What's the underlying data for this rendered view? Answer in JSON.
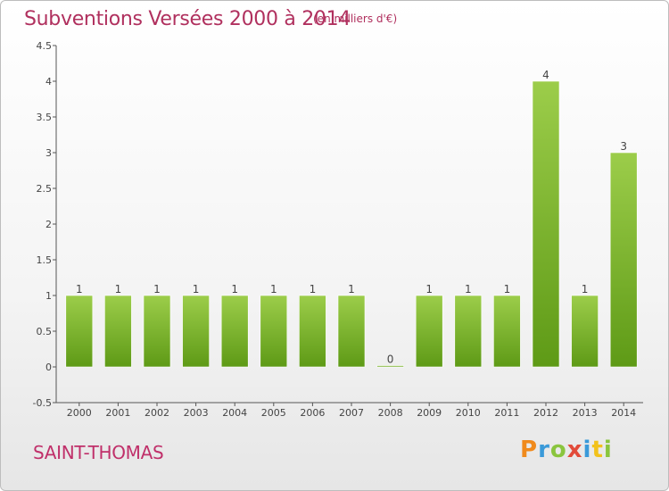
{
  "header": {
    "title": "Subventions Versées 2000 à 2014",
    "subtitle": "(en milliers d'€)"
  },
  "footer": {
    "commune": "SAINT-THOMAS",
    "logo_text": "Proxiti"
  },
  "colors": {
    "title": "#b0305e",
    "bar_light": "#9ccd4a",
    "bar_dark": "#5e9a16",
    "axis": "#555555"
  },
  "chart_data": {
    "type": "bar",
    "title": "Subventions Versées 2000 à 2014",
    "subtitle": "(en milliers d'€)",
    "categories": [
      "2000",
      "2001",
      "2002",
      "2003",
      "2004",
      "2005",
      "2006",
      "2007",
      "2008",
      "2009",
      "2010",
      "2011",
      "2012",
      "2013",
      "2014"
    ],
    "values": [
      1,
      1,
      1,
      1,
      1,
      1,
      1,
      1,
      0,
      1,
      1,
      1,
      4,
      1,
      3
    ],
    "ylim": [
      -0.5,
      4.5
    ],
    "yticks": [
      -0.5,
      0,
      0.5,
      1,
      1.5,
      2,
      2.5,
      3,
      3.5,
      4,
      4.5
    ],
    "ytick_labels": [
      "-0.5",
      "0",
      "0.5",
      "1",
      "1.5",
      "2",
      "2.5",
      "3",
      "3.5",
      "4",
      "4.5"
    ],
    "grid": false,
    "legend": "none"
  }
}
